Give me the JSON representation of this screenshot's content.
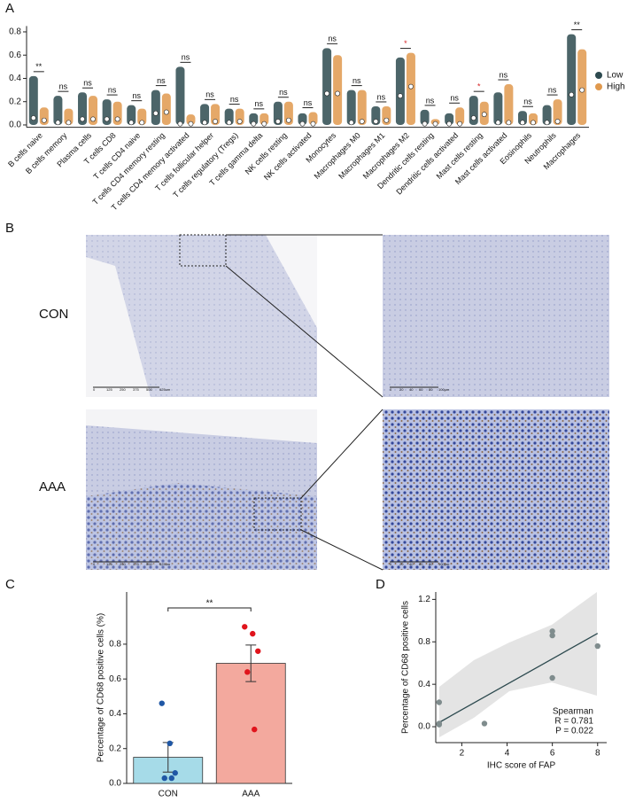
{
  "chart_data": [
    {
      "type": "violin",
      "panel_label": "A",
      "categories": [
        "B cells naive",
        "B cells memory",
        "Plasma cells",
        "T cells CD8",
        "T cells CD4 naive",
        "T cells CD4 memory resting",
        "T cells CD4 memory activated",
        "T cells follicular helper",
        "T cells regulatory (Tregs)",
        "T cells gamma delta",
        "NK cells resting",
        "NK cells activated",
        "Monocytes",
        "Macrophages M0",
        "Macrophages M1",
        "Macrophages M2",
        "Dendritic cells resting",
        "Dendritic cells activated",
        "Mast cells resting",
        "Mast cells activated",
        "Eosinophils",
        "Neutrophils",
        "Macrophages"
      ],
      "series": [
        {
          "name": "Low",
          "color": "#2d4a4f",
          "values": [
            0.06,
            0.02,
            0.05,
            0.05,
            0.02,
            0.1,
            0.01,
            0.02,
            0.02,
            0.01,
            0.03,
            0.01,
            0.27,
            0.02,
            0.03,
            0.25,
            0.01,
            0.01,
            0.06,
            0.02,
            0.02,
            0.02,
            0.26
          ],
          "max": [
            0.42,
            0.25,
            0.28,
            0.22,
            0.17,
            0.3,
            0.5,
            0.18,
            0.14,
            0.1,
            0.2,
            0.1,
            0.66,
            0.3,
            0.16,
            0.58,
            0.13,
            0.1,
            0.25,
            0.28,
            0.12,
            0.17,
            0.78
          ]
        },
        {
          "name": "High",
          "color": "#e0994e",
          "values": [
            0.04,
            0.02,
            0.05,
            0.05,
            0.02,
            0.11,
            0.01,
            0.03,
            0.03,
            0.01,
            0.04,
            0.01,
            0.27,
            0.03,
            0.04,
            0.33,
            0.01,
            0.01,
            0.09,
            0.02,
            0.02,
            0.03,
            0.3
          ],
          "max": [
            0.15,
            0.14,
            0.25,
            0.2,
            0.14,
            0.27,
            0.09,
            0.18,
            0.14,
            0.1,
            0.2,
            0.11,
            0.6,
            0.3,
            0.16,
            0.62,
            0.05,
            0.15,
            0.2,
            0.35,
            0.1,
            0.22,
            0.65
          ]
        }
      ],
      "significance": [
        "**",
        "ns",
        "ns",
        "ns",
        "ns",
        "ns",
        "ns",
        "ns",
        "ns",
        "ns",
        "ns",
        "ns",
        "ns",
        "ns",
        "ns",
        "*",
        "ns",
        "ns",
        "*",
        "ns",
        "ns",
        "ns",
        "**"
      ],
      "significance_colors": [
        "#111",
        "#111",
        "#111",
        "#111",
        "#111",
        "#111",
        "#111",
        "#111",
        "#111",
        "#111",
        "#111",
        "#111",
        "#111",
        "#111",
        "#111",
        "#d62728",
        "#111",
        "#111",
        "#d62728",
        "#111",
        "#111",
        "#111",
        "#111"
      ],
      "ylim": [
        -0.02,
        0.85
      ],
      "yticks": [
        {
          "value": 0,
          "label": "0.0"
        },
        {
          "value": 0.2,
          "label": "0.2"
        },
        {
          "value": 0.4,
          "label": "0.4"
        },
        {
          "value": 0.6,
          "label": "0.6"
        },
        {
          "value": 0.8,
          "label": "0.8"
        }
      ],
      "legend": "right"
    },
    {
      "type": "bar",
      "panel_label": "C",
      "categories": [
        "CON",
        "AAA"
      ],
      "values": [
        0.15,
        0.69
      ],
      "errors": [
        0.085,
        0.105
      ],
      "colors": [
        "#a6dbe8",
        "#f3a99e"
      ],
      "point_colors": [
        "#1f57a5",
        "#e0141c"
      ],
      "points": [
        [
          0.46,
          0.23,
          0.06,
          0.03,
          0.03
        ],
        [
          0.9,
          0.86,
          0.76,
          0.64,
          0.31
        ]
      ],
      "annotation": "**",
      "ylabel": "Percentage of CD68 positive cells (%)",
      "ylim": [
        0,
        1.1
      ],
      "yticks": [
        {
          "value": 0,
          "label": "0.0"
        },
        {
          "value": 0.2,
          "label": "0.2"
        },
        {
          "value": 0.4,
          "label": "0.4"
        },
        {
          "value": 0.6,
          "label": "0.6"
        },
        {
          "value": 0.8,
          "label": "0.8"
        }
      ]
    },
    {
      "type": "scatter",
      "panel_label": "D",
      "x": [
        1,
        1,
        1,
        3,
        6,
        6,
        6,
        8
      ],
      "y": [
        0.23,
        0.03,
        0.02,
        0.03,
        0.9,
        0.86,
        0.46,
        0.76
      ],
      "color": "#7f8c8d",
      "fit_line": {
        "x": [
          1,
          8
        ],
        "y": [
          0.04,
          0.88
        ],
        "color": "#2d4a4f"
      },
      "xlabel": "IHC score of FAP",
      "ylabel": "Percentage of CD68 positive cells",
      "stats": [
        "Spearman",
        "R = 0.781",
        "P = 0.022"
      ],
      "xlim": [
        0.85,
        8.4
      ],
      "xticks": [
        2,
        4,
        6,
        8
      ],
      "ylim": [
        -0.15,
        1.27
      ],
      "yticks": [
        {
          "value": 0,
          "label": "0.0"
        },
        {
          "value": 0.4,
          "label": "0.4"
        },
        {
          "value": 0.8,
          "label": "0.8"
        },
        {
          "value": 1.2,
          "label": "1.2"
        }
      ]
    }
  ],
  "panel_b": {
    "panel_label": "B",
    "groups": [
      "CON",
      "AAA"
    ],
    "scale_overview": [
      "0",
      "125",
      "250",
      "375",
      "500",
      "625um"
    ],
    "scale_zoom": [
      "0",
      "20",
      "40",
      "60",
      "80",
      "100µm"
    ]
  }
}
